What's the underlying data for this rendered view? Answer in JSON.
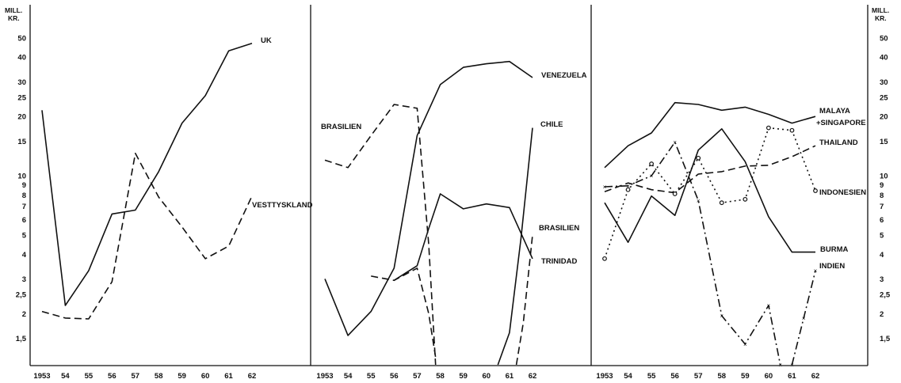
{
  "chart_data": {
    "type": "line",
    "y_scale": "log",
    "ylim": [
      1.1,
      60
    ],
    "y_unit_label": [
      "MILL.",
      "KR."
    ],
    "y_ticks": [
      1.5,
      2,
      2.5,
      3,
      4,
      5,
      6,
      7,
      8,
      9,
      10,
      15,
      20,
      25,
      30,
      40,
      50
    ],
    "y_tick_labels": [
      "1,5",
      "2",
      "2,5",
      "3",
      "4",
      "5",
      "6",
      "7",
      "8",
      "9",
      "10",
      "15",
      "20",
      "25",
      "30",
      "40",
      "50"
    ],
    "x_ticks": [
      1953,
      1954,
      1955,
      1956,
      1957,
      1958,
      1959,
      1960,
      1961,
      1962
    ],
    "x_tick_labels": [
      "1953",
      "54",
      "55",
      "56",
      "57",
      "58",
      "59",
      "60",
      "61",
      "62"
    ],
    "grid": false,
    "panels": [
      {
        "series": [
          {
            "name": "UK",
            "style": "solid",
            "x": [
              1953,
              1954,
              1955,
              1956,
              1957,
              1958,
              1959,
              1960,
              1961,
              1962
            ],
            "values": [
              21.5,
              2.2,
              3.3,
              6.4,
              6.7,
              10.5,
              18.5,
              25.5,
              43,
              47
            ]
          },
          {
            "name": "VESTTYSKLAND",
            "style": "dashed",
            "x": [
              1953,
              1954,
              1955,
              1956,
              1957,
              1958,
              1959,
              1960,
              1961,
              1962
            ],
            "values": [
              2.05,
              1.9,
              1.88,
              2.9,
              13,
              7.8,
              5.5,
              3.8,
              4.4,
              7.9
            ]
          }
        ]
      },
      {
        "series": [
          {
            "name": "VENEZUELA",
            "style": "solid",
            "x": [
              1953,
              1954,
              1955,
              1956,
              1957,
              1958,
              1959,
              1960,
              1961,
              1962
            ],
            "values": [
              3,
              1.55,
              2.05,
              3.4,
              16,
              29,
              35.5,
              37,
              38,
              31.5
            ]
          },
          {
            "name": "CHILE",
            "style": "solid",
            "x": [
              1960.5,
              1961,
              1961.5,
              1962
            ],
            "values": [
              1.1,
              1.6,
              4.8,
              17.5
            ]
          },
          {
            "name": "TRINIDAD",
            "style": "solid",
            "x": [
              1956,
              1957,
              1957.5,
              1958,
              1959,
              1960,
              1961,
              1962
            ],
            "values": [
              2.95,
              3.5,
              5.4,
              8.1,
              6.8,
              7.2,
              6.9,
              3.8
            ]
          },
          {
            "name": "BRASILIEN",
            "style": "dashed",
            "x": [
              1953,
              1954,
              1955,
              1956,
              1957,
              1957.5,
              1957.8
            ],
            "values": [
              12,
              11,
              16,
              23,
              22,
              4.5,
              1.1
            ]
          },
          {
            "name": "BRASILIEN",
            "style": "dashed",
            "x": [
              1955,
              1956,
              1957,
              1957.5,
              1957.8
            ],
            "values": [
              3.1,
              2.95,
              3.4,
              2.0,
              1.2
            ]
          },
          {
            "name": "BRASILIEN",
            "style": "dashed",
            "x": [
              1961.3,
              1961.6,
              1962
            ],
            "values": [
              1.1,
              1.8,
              5.0
            ]
          }
        ]
      },
      {
        "series": [
          {
            "name": "MALAYA + SINGAPORE",
            "style": "solid",
            "x": [
              1953,
              1954,
              1955,
              1956,
              1957,
              1958,
              1959,
              1960,
              1961,
              1962
            ],
            "values": [
              11,
              14.2,
              16.5,
              23.5,
              23,
              21.5,
              22.3,
              20.5,
              18.5,
              20
            ]
          },
          {
            "name": "THAILAND",
            "style": "dashed",
            "x": [
              1953,
              1954,
              1955,
              1956,
              1957,
              1958,
              1959,
              1960,
              1961,
              1962
            ],
            "values": [
              8.3,
              9.2,
              8.5,
              8.2,
              10.2,
              10.5,
              11.2,
              11.3,
              12.5,
              14.2
            ]
          },
          {
            "name": "INDONESIEN",
            "style": "dotted-circle",
            "x": [
              1953,
              1954,
              1955,
              1956,
              1957,
              1958,
              1959,
              1960,
              1961,
              1962
            ],
            "values": [
              3.8,
              8.5,
              11.5,
              8.1,
              12.3,
              7.3,
              7.6,
              17.5,
              17,
              8.4
            ]
          },
          {
            "name": "BURMA",
            "style": "solid",
            "x": [
              1953,
              1954,
              1955,
              1956,
              1957,
              1958,
              1959,
              1960,
              1961,
              1962
            ],
            "values": [
              7.3,
              4.6,
              7.9,
              6.3,
              13.5,
              17.3,
              11.8,
              6.2,
              4.1,
              4.1
            ]
          },
          {
            "name": "INDIEN",
            "style": "dash-cross",
            "x": [
              1953,
              1954,
              1955,
              1956,
              1957,
              1958,
              1959,
              1960,
              1960.5
            ],
            "values": [
              8.8,
              8.9,
              10,
              14.8,
              7.5,
              1.95,
              1.4,
              2.2,
              1.1
            ]
          },
          {
            "name": "INDIEN",
            "style": "dash-cross",
            "x": [
              1961,
              1961.5,
              1962
            ],
            "values": [
              1.1,
              1.9,
              3.3
            ]
          }
        ]
      }
    ]
  }
}
